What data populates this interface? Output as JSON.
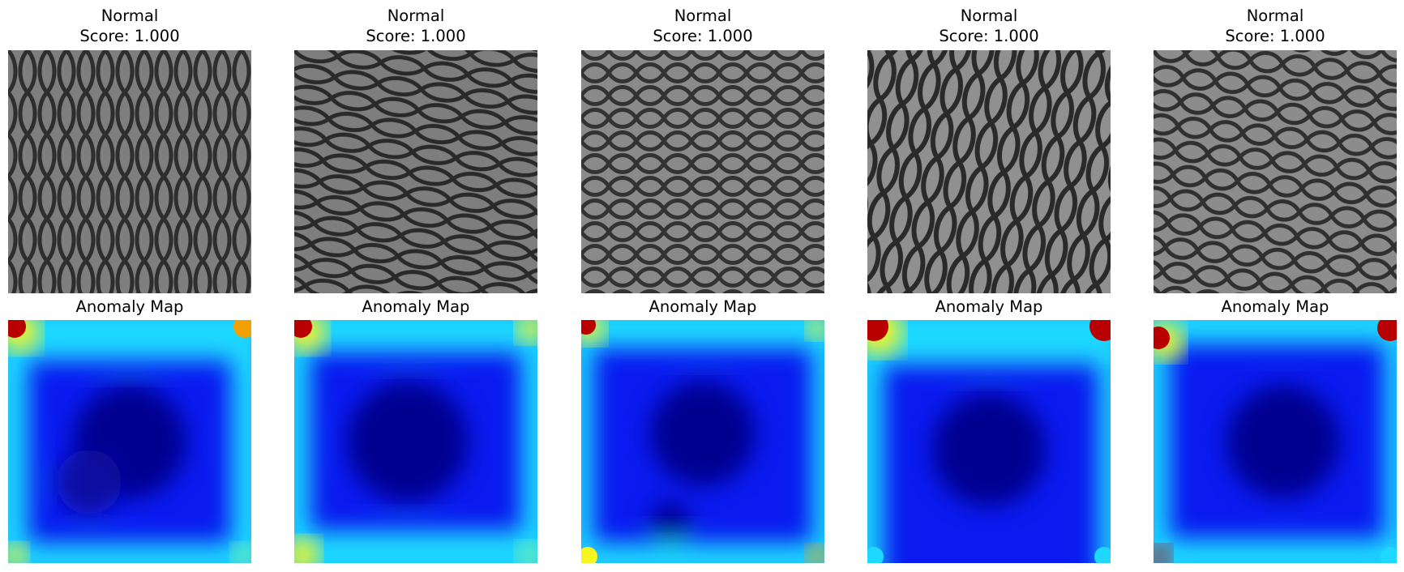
{
  "panels": [
    {
      "top_line1": "Normal",
      "top_line2": "Score: 1.000",
      "bottom_title": "Anomaly Map"
    },
    {
      "top_line1": "Normal",
      "top_line2": "Score: 1.000",
      "bottom_title": "Anomaly Map"
    },
    {
      "top_line1": "Normal",
      "top_line2": "Score: 1.000",
      "bottom_title": "Anomaly Map"
    },
    {
      "top_line1": "Normal",
      "top_line2": "Score: 1.000",
      "bottom_title": "Anomaly Map"
    },
    {
      "top_line1": "Normal",
      "top_line2": "Score: 1.000",
      "bottom_title": "Anomaly Map"
    }
  ],
  "colors": {
    "mesh_background": "#7e7e7e",
    "mesh_wire": "#2e2e2e",
    "heat_low": "#00008f",
    "heat_mid": "#0a1af0",
    "heat_cyan": "#1ed8ff",
    "heat_yellow": "#f7f520",
    "heat_red": "#b80000"
  }
}
